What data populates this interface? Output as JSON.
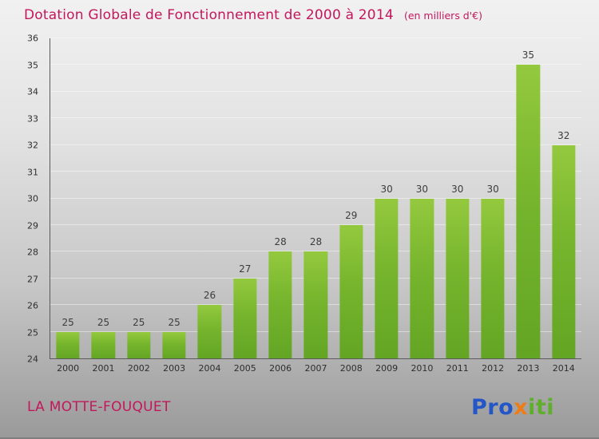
{
  "title": "Dotation Globale de Fonctionnement de 2000 à 2014",
  "subtitle": "(en milliers d'€)",
  "chart_data": {
    "type": "bar",
    "categories": [
      "2000",
      "2001",
      "2002",
      "2003",
      "2004",
      "2005",
      "2006",
      "2007",
      "2008",
      "2009",
      "2010",
      "2011",
      "2012",
      "2013",
      "2014"
    ],
    "values": [
      25,
      25,
      25,
      25,
      26,
      27,
      28,
      28,
      29,
      30,
      30,
      30,
      30,
      35,
      32
    ],
    "title": "Dotation Globale de Fonctionnement de 2000 à 2014",
    "xlabel": "",
    "ylabel": "",
    "ylim": [
      24,
      36
    ],
    "ytick_step": 1,
    "grid": true,
    "legend": false,
    "bar_color_top": "#94c93e",
    "bar_color_bottom": "#63a524"
  },
  "footer": {
    "commune": "LA MOTTE-FOUQUET",
    "brand": {
      "name": "Proxiti",
      "letters": [
        {
          "ch": "P",
          "color": "#2456c8"
        },
        {
          "ch": "r",
          "color": "#2456c8"
        },
        {
          "ch": "o",
          "color": "#2456c8"
        },
        {
          "ch": "x",
          "color": "#ee7d18"
        },
        {
          "ch": "i",
          "color": "#5fae2c"
        },
        {
          "ch": "t",
          "color": "#5fae2c"
        },
        {
          "ch": "i",
          "color": "#5fae2c"
        }
      ]
    }
  },
  "colors": {
    "title_text": "#c2185b",
    "axis_text": "#2e2e2e",
    "value_label_text": "#3c3c3c",
    "gridline": "rgba(255,255,255,0.45)"
  }
}
